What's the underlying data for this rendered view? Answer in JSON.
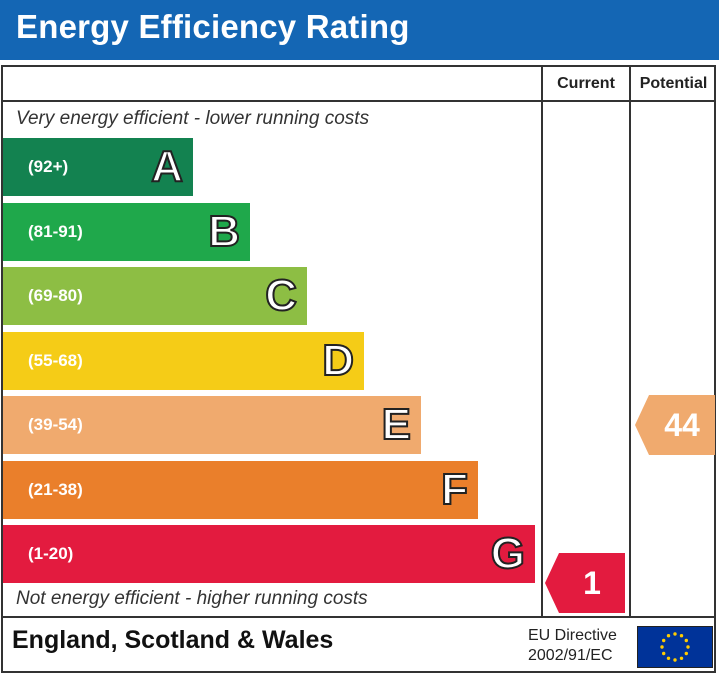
{
  "header": {
    "title": "Energy Efficiency Rating"
  },
  "columns": {
    "current": "Current",
    "potential": "Potential"
  },
  "captions": {
    "top": "Very energy efficient - lower running costs",
    "bottom": "Not energy efficient - higher running costs"
  },
  "chart_data": {
    "type": "bar",
    "title": "Energy Efficiency Rating",
    "bands": [
      {
        "letter": "A",
        "range": "(92+)",
        "color": "#138250"
      },
      {
        "letter": "B",
        "range": "(81-91)",
        "color": "#1fa84b"
      },
      {
        "letter": "C",
        "range": "(69-80)",
        "color": "#8dbe44"
      },
      {
        "letter": "D",
        "range": "(55-68)",
        "color": "#f5cc17"
      },
      {
        "letter": "E",
        "range": "(39-54)",
        "color": "#f0aa6e"
      },
      {
        "letter": "F",
        "range": "(21-38)",
        "color": "#ea7f2b"
      },
      {
        "letter": "G",
        "range": "(1-20)",
        "color": "#e31b3f"
      }
    ],
    "current": {
      "value": "1",
      "band": "G",
      "color": "#e31b3f"
    },
    "potential": {
      "value": "44",
      "band": "E",
      "color": "#f0aa6e"
    }
  },
  "footer": {
    "region": "England, Scotland & Wales",
    "directive_line1": "EU Directive",
    "directive_line2": "2002/91/EC"
  },
  "icons": {
    "flag": "eu-flag-icon"
  }
}
